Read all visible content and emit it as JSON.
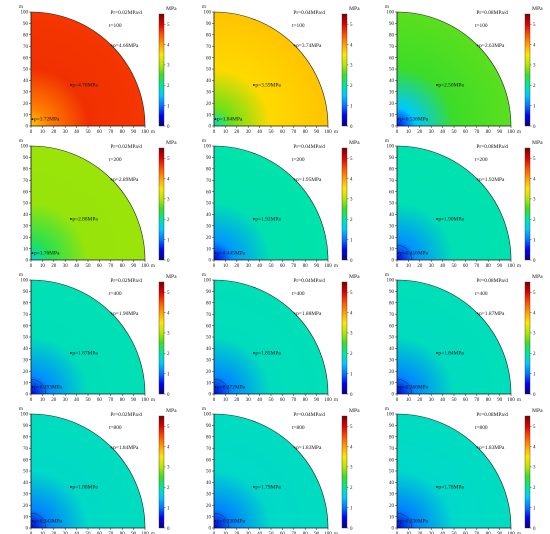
{
  "colorbar": {
    "title": "MPa",
    "ticks": [
      "0",
      "1",
      "2",
      "3",
      "4",
      "5"
    ],
    "max": 5.5,
    "stops": [
      "#0a0078",
      "#0000ff",
      "#0078ff",
      "#00c8ff",
      "#00e6a0",
      "#3cdc28",
      "#b4e600",
      "#ffe600",
      "#ffa000",
      "#ff5000",
      "#dc0000",
      "#7a0000"
    ]
  },
  "axes": {
    "x_ticks": [
      "0",
      "10",
      "20",
      "30",
      "40",
      "50",
      "60",
      "70",
      "80",
      "90",
      "100"
    ],
    "y_ticks": [
      "0",
      "10",
      "20",
      "30",
      "40",
      "50",
      "60",
      "70",
      "80",
      "90",
      "100"
    ],
    "x_unit": "m",
    "y_unit": "m",
    "range": [
      0,
      100
    ],
    "radius": 100
  },
  "panels": [
    {
      "rate": "Pr=0.02MPa/d",
      "time": "t=100",
      "p_edge": "p=4.66MPa",
      "p_mid": "p=4.70MPa",
      "p_well": "p=3.72MPa",
      "v_edge": 4.66,
      "v_mid": 4.7,
      "v_well": 3.72,
      "well_circle": false
    },
    {
      "rate": "Pr=0.04MPa/d",
      "time": "t=100",
      "p_edge": "p=3.74MPa",
      "p_mid": "p=3.59MPa",
      "p_well": "p=1.84MPa",
      "v_edge": 3.74,
      "v_mid": 3.59,
      "v_well": 1.84,
      "well_circle": false
    },
    {
      "rate": "Pr=0.08MPa/d",
      "time": "t=100",
      "p_edge": "p=2.63MPa",
      "p_mid": "p=2.50MPa",
      "p_well": "p=0.536MPa",
      "v_edge": 2.63,
      "v_mid": 2.5,
      "v_well": 0.536,
      "well_circle": false
    },
    {
      "rate": "Pr=0.02MPa/d",
      "time": "t=200",
      "p_edge": "p=2.89MPa",
      "p_mid": "p=2.88MPa",
      "p_well": "p=1.76MPa",
      "v_edge": 2.89,
      "v_mid": 2.88,
      "v_well": 1.76,
      "well_circle": false
    },
    {
      "rate": "Pr=0.04MPa/d",
      "time": "t=200",
      "p_edge": "p=1.95MPa",
      "p_mid": "p=1.92MPa",
      "p_well": "p=0.445MPa",
      "v_edge": 1.95,
      "v_mid": 1.92,
      "v_well": 0.445,
      "well_circle": false
    },
    {
      "rate": "Pr=0.08MPa/d",
      "time": "t=200",
      "p_edge": "p=1.92MPa",
      "p_mid": "p=1.90MPa",
      "p_well": "p=0.416MPa",
      "v_edge": 1.92,
      "v_mid": 1.9,
      "v_well": 0.416,
      "well_circle": true
    },
    {
      "rate": "Pr=0.02MPa/d",
      "time": "t=400",
      "p_edge": "p=1.90MPa",
      "p_mid": "p=1.87MPa",
      "p_well": "p=0.393MPa",
      "v_edge": 1.9,
      "v_mid": 1.87,
      "v_well": 0.393,
      "well_circle": true
    },
    {
      "rate": "Pr=0.04MPa/d",
      "time": "t=400",
      "p_edge": "p=1.88MPa",
      "p_mid": "p=1.85MPa",
      "p_well": "p=0.372MPa",
      "v_edge": 1.88,
      "v_mid": 1.85,
      "v_well": 0.372,
      "well_circle": true
    },
    {
      "rate": "Pr=0.08MPa/d",
      "time": "t=400",
      "p_edge": "p=1.87MPa",
      "p_mid": "p=1.84MPa",
      "p_well": "p=0.366MPa",
      "v_edge": 1.87,
      "v_mid": 1.84,
      "v_well": 0.366,
      "well_circle": true
    },
    {
      "rate": "Pr=0.02MPa/d",
      "time": "t=800",
      "p_edge": "p=1.84MPa",
      "p_mid": "p=1.80MPa",
      "p_well": "p=0.343MPa",
      "v_edge": 1.84,
      "v_mid": 1.8,
      "v_well": 0.343,
      "well_circle": true
    },
    {
      "rate": "Pr=0.04MPa/d",
      "time": "t=800",
      "p_edge": "p=1.83MPa",
      "p_mid": "p=1.79MPa",
      "p_well": "p=0.338MPa",
      "v_edge": 1.83,
      "v_mid": 1.79,
      "v_well": 0.338,
      "well_circle": true
    },
    {
      "rate": "Pr=0.08MPa/d",
      "time": "t=800",
      "p_edge": "p=1.83MPa",
      "p_mid": "p=1.78MPa",
      "p_well": "p=0.336MPa",
      "v_edge": 1.83,
      "v_mid": 1.78,
      "v_well": 0.336,
      "well_circle": true
    }
  ]
}
